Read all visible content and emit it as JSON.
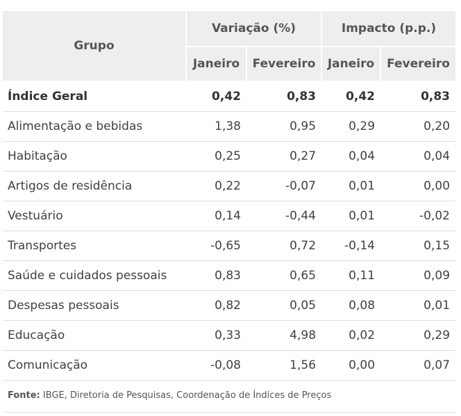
{
  "header": {
    "grupo": "Grupo",
    "variacao": "Variação (%)",
    "impacto": "Impacto (p.p.)",
    "janeiro": "Janeiro",
    "fevereiro": "Fevereiro"
  },
  "rows": [
    {
      "grupo": "Índice Geral",
      "var_jan": "0,42",
      "var_fev": "0,83",
      "imp_jan": "0,42",
      "imp_fev": "0,83"
    },
    {
      "grupo": "Alimentação e bebidas",
      "var_jan": "1,38",
      "var_fev": "0,95",
      "imp_jan": "0,29",
      "imp_fev": "0,20"
    },
    {
      "grupo": "Habitação",
      "var_jan": "0,25",
      "var_fev": "0,27",
      "imp_jan": "0,04",
      "imp_fev": "0,04"
    },
    {
      "grupo": "Artigos de residência",
      "var_jan": "0,22",
      "var_fev": "-0,07",
      "imp_jan": "0,01",
      "imp_fev": "0,00"
    },
    {
      "grupo": "Vestuário",
      "var_jan": "0,14",
      "var_fev": "-0,44",
      "imp_jan": "0,01",
      "imp_fev": "-0,02"
    },
    {
      "grupo": "Transportes",
      "var_jan": "-0,65",
      "var_fev": "0,72",
      "imp_jan": "-0,14",
      "imp_fev": "0,15"
    },
    {
      "grupo": "Saúde e cuidados pessoais",
      "var_jan": "0,83",
      "var_fev": "0,65",
      "imp_jan": "0,11",
      "imp_fev": "0,09"
    },
    {
      "grupo": "Despesas pessoais",
      "var_jan": "0,82",
      "var_fev": "0,05",
      "imp_jan": "0,08",
      "imp_fev": "0,01"
    },
    {
      "grupo": "Educação",
      "var_jan": "0,33",
      "var_fev": "4,98",
      "imp_jan": "0,02",
      "imp_fev": "0,29"
    },
    {
      "grupo": "Comunicação",
      "var_jan": "-0,08",
      "var_fev": "1,56",
      "imp_jan": "0,00",
      "imp_fev": "0,07"
    }
  ],
  "footer": {
    "fonte_label": "Fonte:",
    "fonte_text": " IBGE, Diretoria de Pesquisas, Coordenação de Índices de Preços"
  }
}
